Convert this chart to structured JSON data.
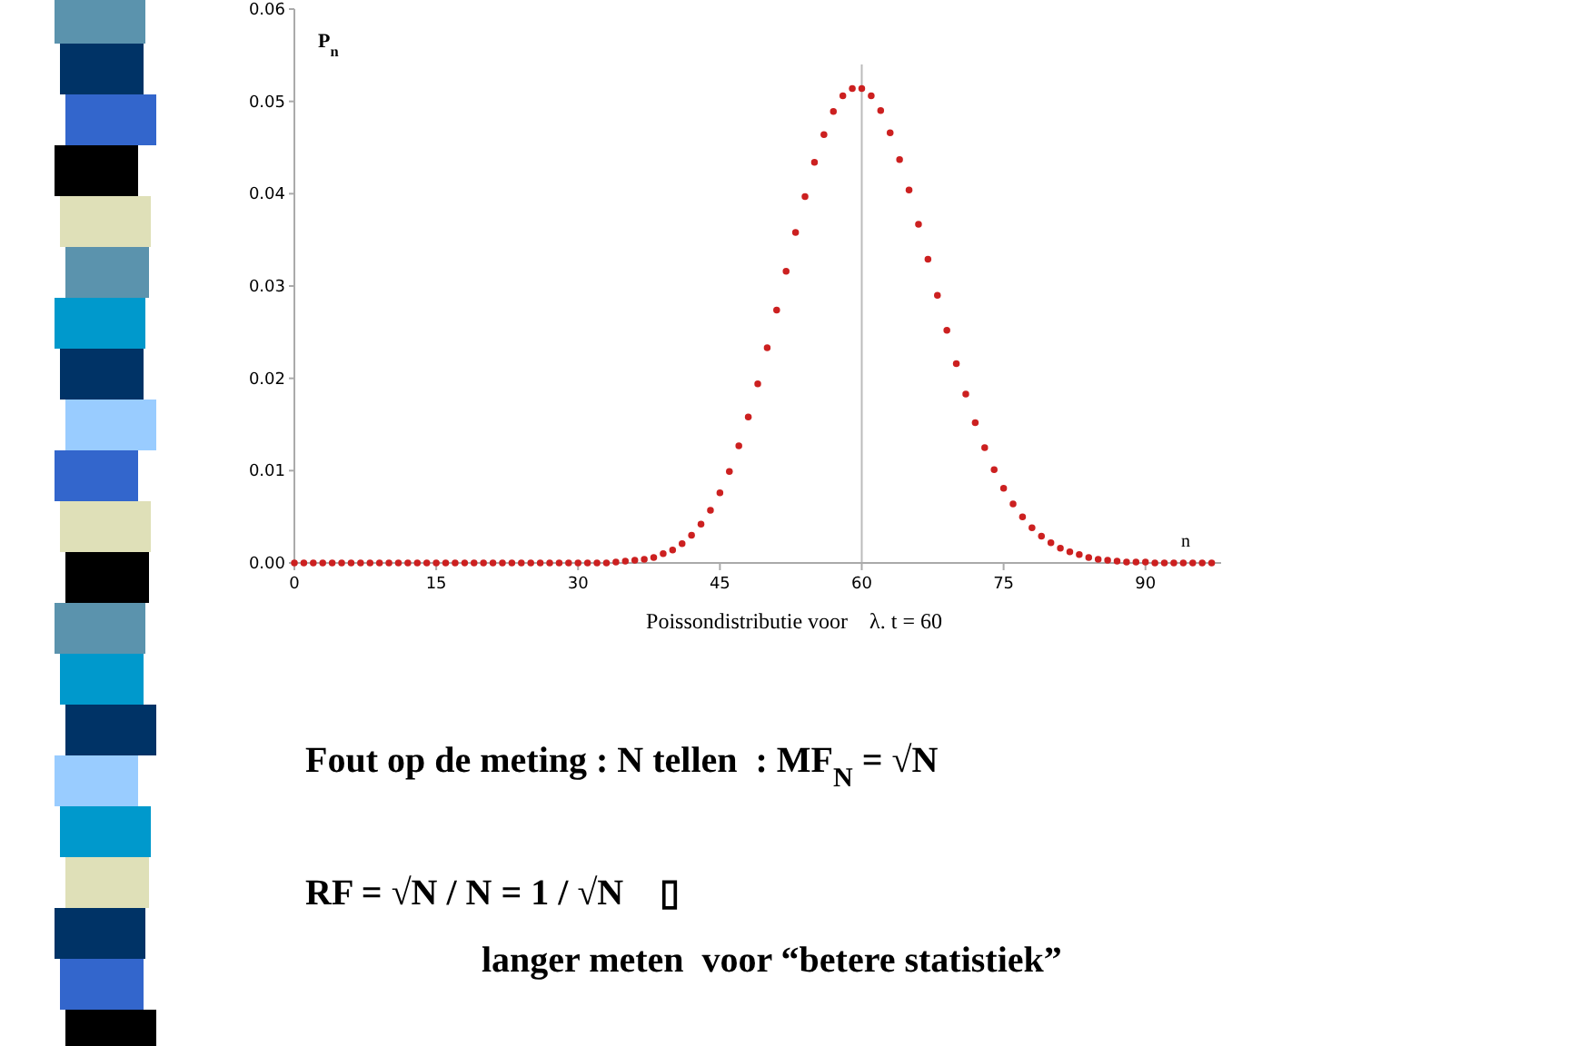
{
  "chart_data": {
    "type": "scatter",
    "title": "Poissondistributie voor    λ. t = 60",
    "xlabel": "n",
    "ylabel": "P$_{n}$",
    "x": [
      0,
      1,
      2,
      3,
      4,
      5,
      6,
      7,
      8,
      9,
      10,
      11,
      12,
      13,
      14,
      15,
      16,
      17,
      18,
      19,
      20,
      21,
      22,
      23,
      24,
      25,
      26,
      27,
      28,
      29,
      30,
      31,
      32,
      33,
      34,
      35,
      36,
      37,
      38,
      39,
      40,
      41,
      42,
      43,
      44,
      45,
      46,
      47,
      48,
      49,
      50,
      51,
      52,
      53,
      54,
      55,
      56,
      57,
      58,
      59,
      60,
      61,
      62,
      63,
      64,
      65,
      66,
      67,
      68,
      69,
      70,
      71,
      72,
      73,
      74,
      75,
      76,
      77,
      78,
      79,
      80,
      81,
      82,
      83,
      84,
      85,
      86,
      87,
      88,
      89,
      90,
      91,
      92,
      93,
      94,
      95,
      96,
      97
    ],
    "series": [
      {
        "color": "#cc2020",
        "values": [
          0,
          0,
          0,
          0,
          0,
          0,
          0,
          0,
          0,
          0,
          0,
          0,
          0,
          0,
          0,
          0,
          0,
          0,
          0,
          0,
          0,
          0,
          0,
          0,
          0,
          0,
          0,
          0,
          0,
          0,
          0,
          0,
          0,
          0,
          0.0001,
          0.0002,
          0.0003,
          0.0004,
          0.0006,
          0.001,
          0.0014,
          0.0021,
          0.003,
          0.0042,
          0.0057,
          0.0076,
          0.0099,
          0.0127,
          0.0158,
          0.0194,
          0.0233,
          0.0274,
          0.0316,
          0.0358,
          0.0397,
          0.0434,
          0.0464,
          0.0489,
          0.0506,
          0.0514,
          0.0514,
          0.0506,
          0.049,
          0.0466,
          0.0437,
          0.0404,
          0.0367,
          0.0329,
          0.029,
          0.0252,
          0.0216,
          0.0183,
          0.0152,
          0.0125,
          0.0101,
          0.0081,
          0.0064,
          0.005,
          0.0038,
          0.0029,
          0.0022,
          0.0016,
          0.0012,
          0.0009,
          0.0006,
          0.0004,
          0.0003,
          0.0002,
          0.0001,
          0.0001,
          0.0001,
          0,
          0,
          0,
          0,
          0,
          0,
          0
        ]
      }
    ],
    "xlim": [
      0,
      98
    ],
    "xticks": [
      0,
      15,
      30,
      45,
      60,
      75,
      90
    ],
    "ylim": [
      0,
      0.06
    ],
    "yticks": [
      {
        "value": 0,
        "label": "0.00"
      },
      {
        "value": 0.01,
        "label": "0.01"
      },
      {
        "value": 0.02,
        "label": "0.02"
      },
      {
        "value": 0.03,
        "label": "0.03"
      },
      {
        "value": 0.04,
        "label": "0.04"
      },
      {
        "value": 0.05,
        "label": "0.05"
      },
      {
        "value": 0.06,
        "label": "0.06"
      }
    ],
    "marker": "circle",
    "grid": false,
    "ref_lines": [
      {
        "axis": "x",
        "value": 60,
        "color": "#bbbbbb"
      }
    ],
    "annotations": [
      "Fout op de meting : N tellen  : MF$_{N}$ = √N",
      "RF = √N / N = 1 / √N    ▯",
      "langer meten  voor “betere statistiek”"
    ]
  }
}
